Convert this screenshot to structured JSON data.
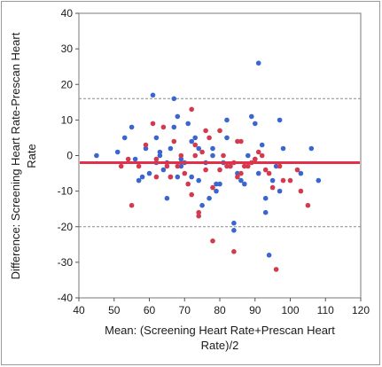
{
  "chart_data": {
    "type": "scatter",
    "xlabel": "Mean: (Screening Heart Rate+Prescan Heart Rate)/2",
    "xlabel_lines": [
      "Mean: (Screening Heart Rate+Prescan Heart",
      "Rate)/2"
    ],
    "ylabel": "Difference: Screening Heart Rate-Prescan Heart Rate",
    "ylabel_lines": [
      "Difference: Screening Heart Rate-Prescan Heart",
      "Rate"
    ],
    "xlim": [
      40,
      120
    ],
    "ylim": [
      -40,
      40
    ],
    "xticks": [
      40,
      50,
      60,
      70,
      80,
      90,
      100,
      110,
      120
    ],
    "yticks": [
      -40,
      -30,
      -20,
      -10,
      0,
      10,
      20,
      30,
      40
    ],
    "grid": false,
    "mean_line": {
      "y": -2,
      "color": "#e0304a"
    },
    "limit_lines": [
      16,
      -20
    ],
    "series": [
      {
        "color": "#3a66d0",
        "points": [
          [
            45,
            0
          ],
          [
            51,
            1
          ],
          [
            53,
            5
          ],
          [
            55,
            8
          ],
          [
            56,
            -1
          ],
          [
            57,
            -7
          ],
          [
            58,
            -6
          ],
          [
            59,
            2
          ],
          [
            60,
            -5
          ],
          [
            61,
            17
          ],
          [
            62,
            5
          ],
          [
            62,
            -2
          ],
          [
            63,
            0
          ],
          [
            63,
            1
          ],
          [
            64,
            -4
          ],
          [
            65,
            -2
          ],
          [
            65,
            -12
          ],
          [
            66,
            -6
          ],
          [
            66,
            2
          ],
          [
            67,
            8
          ],
          [
            67,
            16
          ],
          [
            68,
            11
          ],
          [
            68,
            -6
          ],
          [
            69,
            -1
          ],
          [
            69,
            -3
          ],
          [
            70,
            -2
          ],
          [
            71,
            9
          ],
          [
            72,
            -6
          ],
          [
            72,
            4
          ],
          [
            73,
            5
          ],
          [
            74,
            -7
          ],
          [
            74,
            2
          ],
          [
            75,
            -14
          ],
          [
            76,
            -2
          ],
          [
            77,
            -12
          ],
          [
            78,
            0
          ],
          [
            78,
            2
          ],
          [
            79,
            -10
          ],
          [
            79,
            -8
          ],
          [
            80,
            -8
          ],
          [
            81,
            -2
          ],
          [
            82,
            10
          ],
          [
            82,
            5
          ],
          [
            83,
            -3
          ],
          [
            84,
            -19
          ],
          [
            84,
            -21
          ],
          [
            85,
            -5
          ],
          [
            86,
            -7
          ],
          [
            87,
            -8
          ],
          [
            88,
            0
          ],
          [
            89,
            11
          ],
          [
            90,
            9
          ],
          [
            90,
            -1
          ],
          [
            91,
            26
          ],
          [
            91,
            -5
          ],
          [
            92,
            3
          ],
          [
            93,
            -12
          ],
          [
            93,
            -16
          ],
          [
            94,
            -28
          ],
          [
            95,
            -7
          ],
          [
            96,
            -3
          ],
          [
            97,
            -10
          ],
          [
            97,
            10
          ],
          [
            98,
            2
          ],
          [
            103,
            -5
          ],
          [
            106,
            2
          ],
          [
            108,
            -7
          ]
        ]
      },
      {
        "color": "#d43a4e",
        "points": [
          [
            52,
            -3
          ],
          [
            54,
            -1
          ],
          [
            55,
            -14
          ],
          [
            57,
            -3
          ],
          [
            59,
            3
          ],
          [
            61,
            9
          ],
          [
            62,
            -1
          ],
          [
            62,
            -6
          ],
          [
            64,
            8
          ],
          [
            65,
            -3
          ],
          [
            66,
            -6
          ],
          [
            67,
            4
          ],
          [
            68,
            -3
          ],
          [
            69,
            0
          ],
          [
            70,
            -5
          ],
          [
            71,
            -8
          ],
          [
            72,
            13
          ],
          [
            72,
            -11
          ],
          [
            73,
            0
          ],
          [
            73,
            3
          ],
          [
            74,
            -17
          ],
          [
            74,
            -16
          ],
          [
            75,
            1
          ],
          [
            76,
            7
          ],
          [
            76,
            -4
          ],
          [
            77,
            5
          ],
          [
            78,
            -9
          ],
          [
            78,
            -24
          ],
          [
            80,
            7
          ],
          [
            80,
            -4
          ],
          [
            81,
            0
          ],
          [
            82,
            -3
          ],
          [
            83,
            -3
          ],
          [
            84,
            -27
          ],
          [
            84,
            -2
          ],
          [
            85,
            4
          ],
          [
            85,
            -6
          ],
          [
            86,
            -5
          ],
          [
            86,
            4
          ],
          [
            87,
            -3
          ],
          [
            88,
            -3
          ],
          [
            89,
            -2
          ],
          [
            90,
            -1
          ],
          [
            91,
            1
          ],
          [
            92,
            0
          ],
          [
            93,
            -4
          ],
          [
            94,
            -5
          ],
          [
            95,
            -9
          ],
          [
            96,
            -32
          ],
          [
            97,
            -3
          ],
          [
            98,
            -7
          ],
          [
            100,
            -7
          ],
          [
            102,
            -4
          ],
          [
            103,
            -10
          ],
          [
            105,
            -14
          ]
        ]
      }
    ]
  }
}
